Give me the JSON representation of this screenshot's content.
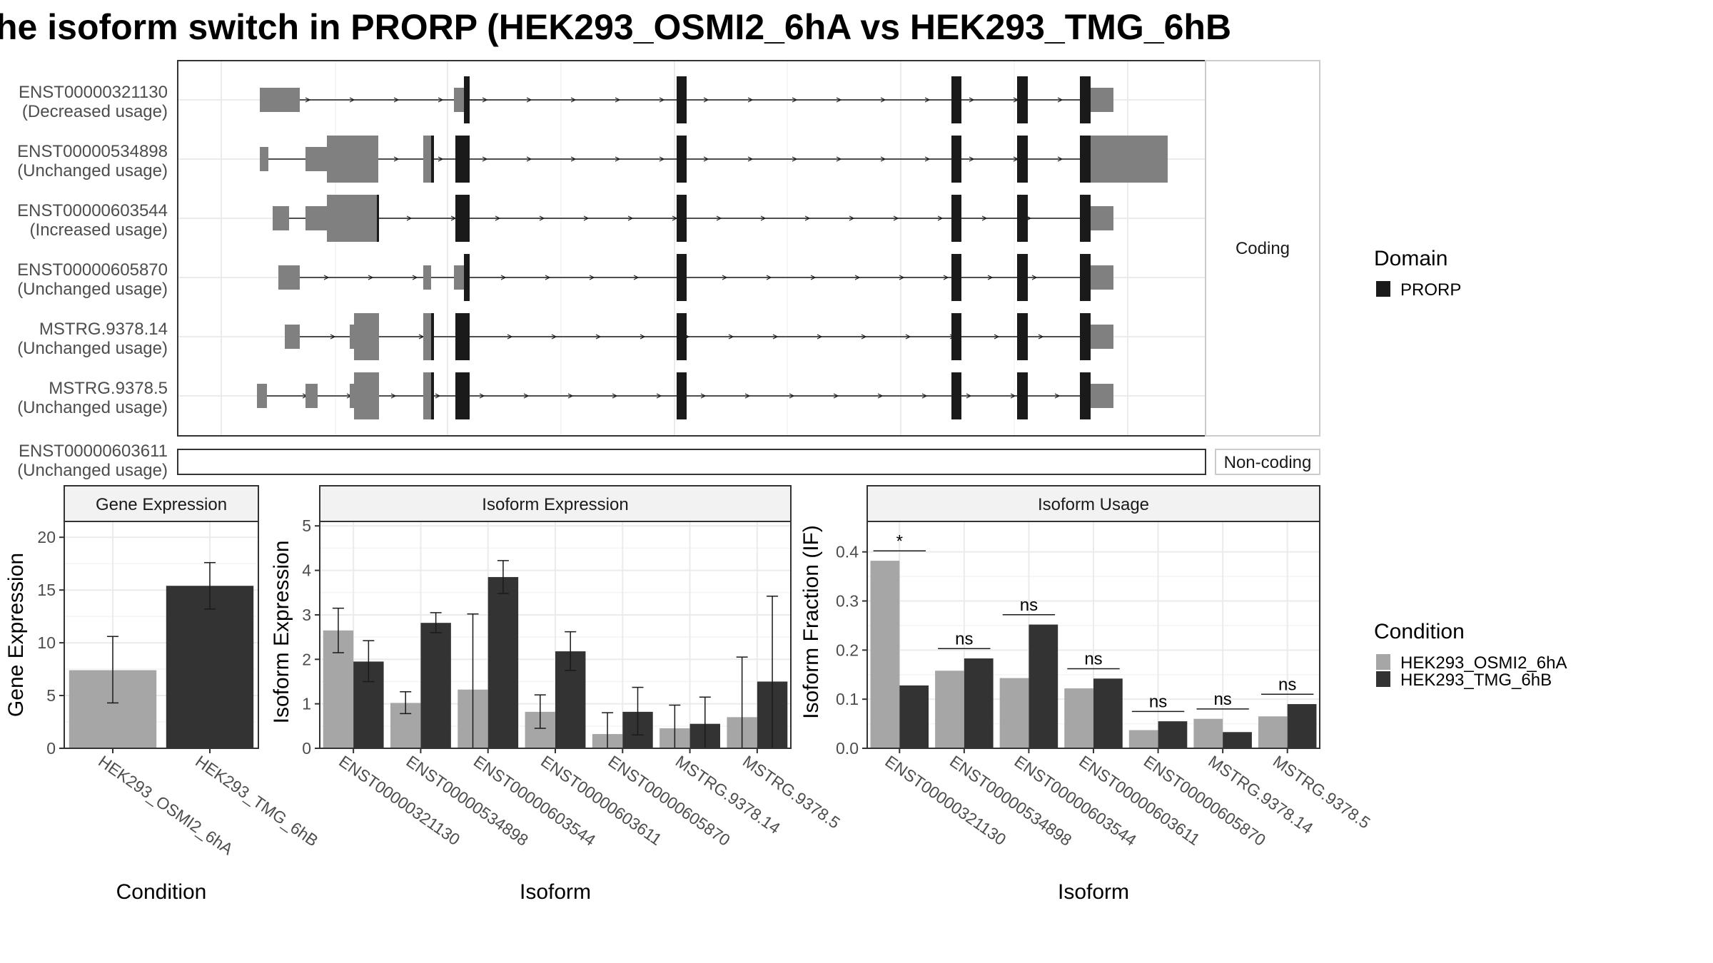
{
  "title": "he isoform switch in PRORP (HEK293_OSMI2_6hA vs HEK293_TMG_6hB",
  "structure_panel": {
    "coding_strip": "Coding",
    "noncoding_strip": "Non-coding",
    "transcripts": [
      {
        "id": "ENST00000321130",
        "usage": "(Decreased usage)",
        "group": "coding"
      },
      {
        "id": "ENST00000534898",
        "usage": "(Unchanged usage)",
        "group": "coding"
      },
      {
        "id": "ENST00000603544",
        "usage": "(Increased usage)",
        "group": "coding"
      },
      {
        "id": "ENST00000605870",
        "usage": "(Unchanged usage)",
        "group": "coding"
      },
      {
        "id": "MSTRG.9378.14",
        "usage": "(Unchanged usage)",
        "group": "coding"
      },
      {
        "id": "MSTRG.9378.5",
        "usage": "(Unchanged usage)",
        "group": "coding"
      },
      {
        "id": "ENST00000603611",
        "usage": "(Unchanged usage)",
        "group": "noncoding"
      }
    ]
  },
  "legend_domain": {
    "title": "Domain",
    "items": [
      {
        "label": "PRORP",
        "color": "#1a1a1a"
      }
    ]
  },
  "legend_condition": {
    "title": "Condition",
    "items": [
      {
        "label": "HEK293_OSMI2_6hA",
        "color": "#a6a6a6"
      },
      {
        "label": "HEK293_TMG_6hB",
        "color": "#333333"
      }
    ]
  },
  "chart_data": [
    {
      "type": "bar",
      "title": "Gene Expression",
      "xlabel": "Condition",
      "ylabel": "Gene Expression",
      "ylim": [
        0,
        21.5
      ],
      "yticks": [
        0,
        5,
        10,
        15,
        20
      ],
      "categories": [
        "HEK293_OSMI2_6hA",
        "HEK293_TMG_6hB"
      ],
      "values": [
        7.4,
        15.4
      ],
      "error_low": [
        4.3,
        13.2
      ],
      "error_high": [
        10.6,
        17.6
      ]
    },
    {
      "type": "bar",
      "title": "Isoform Expression",
      "xlabel": "Isoform",
      "ylabel": "Isoform Expression",
      "ylim": [
        0,
        5.1
      ],
      "yticks": [
        0,
        1,
        2,
        3,
        4,
        5
      ],
      "categories": [
        "ENST00000321130",
        "ENST00000534898",
        "ENST00000603544",
        "ENST00000603611",
        "ENST00000605870",
        "MSTRG.9378.14",
        "MSTRG.9378.5"
      ],
      "series": [
        {
          "name": "HEK293_OSMI2_6hA",
          "values": [
            2.65,
            1.02,
            1.32,
            0.82,
            0.32,
            0.45,
            0.7
          ],
          "error_low": [
            2.15,
            0.78,
            0.0,
            0.45,
            0.0,
            0.0,
            0.0
          ],
          "error_high": [
            3.15,
            1.27,
            3.02,
            1.2,
            0.8,
            0.97,
            2.05
          ]
        },
        {
          "name": "HEK293_TMG_6hB",
          "values": [
            1.95,
            2.82,
            3.85,
            2.18,
            0.82,
            0.55,
            1.5
          ],
          "error_low": [
            1.5,
            2.6,
            3.48,
            1.75,
            0.3,
            0.0,
            0.0
          ],
          "error_high": [
            2.42,
            3.05,
            4.22,
            2.62,
            1.37,
            1.15,
            3.42
          ]
        }
      ]
    },
    {
      "type": "bar",
      "title": "Isoform Usage",
      "xlabel": "Isoform",
      "ylabel": "Isoform Fraction (IF)",
      "ylim": [
        0,
        0.462
      ],
      "yticks": [
        0.0,
        0.1,
        0.2,
        0.3,
        0.4
      ],
      "categories": [
        "ENST00000321130",
        "ENST00000534898",
        "ENST00000603544",
        "ENST00000603611",
        "ENST00000605870",
        "MSTRG.9378.14",
        "MSTRG.9378.5"
      ],
      "series": [
        {
          "name": "HEK293_OSMI2_6hA",
          "values": [
            0.382,
            0.158,
            0.143,
            0.122,
            0.037,
            0.06,
            0.065
          ]
        },
        {
          "name": "HEK293_TMG_6hB",
          "values": [
            0.128,
            0.183,
            0.252,
            0.142,
            0.055,
            0.033,
            0.09
          ]
        }
      ],
      "significance": [
        "*",
        "ns",
        "ns",
        "ns",
        "ns",
        "ns",
        "ns"
      ],
      "significance_y": [
        0.402,
        0.203,
        0.272,
        0.162,
        0.075,
        0.08,
        0.11
      ]
    }
  ]
}
